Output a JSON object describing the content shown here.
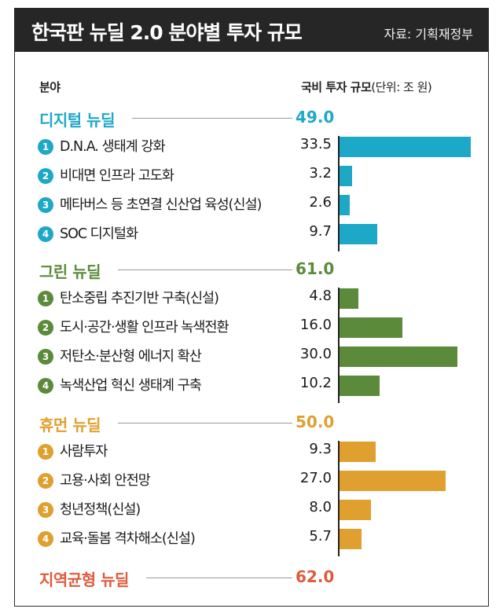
{
  "title": "한국판 뉴딜 2.0 분야별 투자 규모",
  "source": "자료: 기획재정부",
  "column_headers": {
    "field": "분야",
    "budget": "국비 투자 규모",
    "unit": "(단위: 조 원)"
  },
  "colors": {
    "digital": "#1ea8c8",
    "green": "#5a8a3a",
    "human": "#e0a030",
    "regional": "#e05a3c"
  },
  "chart_data": {
    "type": "bar",
    "orientation": "horizontal",
    "title": "한국판 뉴딜 2.0 분야별 투자 규모",
    "unit": "조 원",
    "xlim": [
      0,
      35
    ],
    "sections": [
      {
        "name": "디지털 뉴딜",
        "total": "49.0",
        "color": "#1ea8c8",
        "items": [
          {
            "num": "1",
            "label": "D.N.A. 생태계 강화",
            "value": 33.5,
            "display": "33.5"
          },
          {
            "num": "2",
            "label": "비대면 인프라 고도화",
            "value": 3.2,
            "display": "3.2"
          },
          {
            "num": "3",
            "label": "메타버스 등 초연결 신산업 육성(신설)",
            "value": 2.6,
            "display": "2.6"
          },
          {
            "num": "4",
            "label": "SOC 디지털화",
            "value": 9.7,
            "display": "9.7"
          }
        ]
      },
      {
        "name": "그린 뉴딜",
        "total": "61.0",
        "color": "#5a8a3a",
        "items": [
          {
            "num": "1",
            "label": "탄소중립 추진기반 구축(신설)",
            "value": 4.8,
            "display": "4.8"
          },
          {
            "num": "2",
            "label": "도시·공간·생활 인프라 녹색전환",
            "value": 16.0,
            "display": "16.0"
          },
          {
            "num": "3",
            "label": "저탄소·분산형 에너지 확산",
            "value": 30.0,
            "display": "30.0"
          },
          {
            "num": "4",
            "label": "녹색산업 혁신 생태계 구축",
            "value": 10.2,
            "display": "10.2"
          }
        ]
      },
      {
        "name": "휴먼 뉴딜",
        "total": "50.0",
        "color": "#e0a030",
        "items": [
          {
            "num": "1",
            "label": "사람투자",
            "value": 9.3,
            "display": "9.3"
          },
          {
            "num": "2",
            "label": "고용·사회 안전망",
            "value": 27.0,
            "display": "27.0"
          },
          {
            "num": "3",
            "label": "청년정책(신설)",
            "value": 8.0,
            "display": "8.0"
          },
          {
            "num": "4",
            "label": "교육·돌봄 격차해소(신설)",
            "value": 5.7,
            "display": "5.7"
          }
        ]
      },
      {
        "name": "지역균형 뉴딜",
        "total": "62.0",
        "color": "#e05a3c",
        "items": []
      }
    ]
  }
}
